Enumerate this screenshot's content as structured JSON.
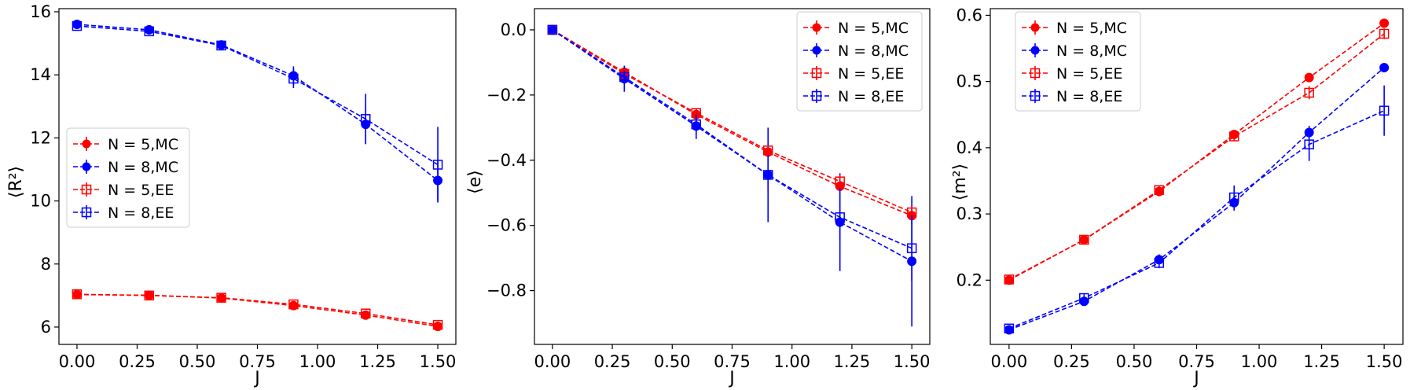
{
  "chart_data": [
    {
      "type": "line",
      "xlabel": "J",
      "ylabel": "⟨R²⟩",
      "xlim": [
        -0.075,
        1.575
      ],
      "ylim": [
        5.45,
        16.1
      ],
      "xticks": [
        0.0,
        0.25,
        0.5,
        0.75,
        1.0,
        1.25,
        1.5
      ],
      "xtick_labels": [
        "0.00",
        "0.25",
        "0.50",
        "0.75",
        "1.00",
        "1.25",
        "1.50"
      ],
      "yticks": [
        6,
        8,
        10,
        12,
        14,
        16
      ],
      "ytick_labels": [
        "6",
        "8",
        "10",
        "12",
        "14",
        "16"
      ],
      "legend_position": "center-left",
      "x": [
        0.0,
        0.3,
        0.6,
        0.9,
        1.2,
        1.5
      ],
      "series": [
        {
          "name": "N = 5,MC",
          "color": "#ff0000",
          "marker": "filled-circle",
          "values": [
            7.03,
            7.01,
            6.92,
            6.68,
            6.38,
            6.02
          ],
          "errors": [
            0.05,
            0.05,
            0.05,
            0.08,
            0.1,
            0.12
          ]
        },
        {
          "name": "N = 8,MC",
          "color": "#0000ff",
          "marker": "filled-circle",
          "values": [
            15.6,
            15.43,
            14.95,
            13.97,
            12.43,
            10.65
          ],
          "errors": [
            0.08,
            0.1,
            0.12,
            0.3,
            0.6,
            0.65
          ]
        },
        {
          "name": "N = 5,EE",
          "color": "#ff0000",
          "marker": "open-square",
          "values": [
            7.04,
            7.0,
            6.93,
            6.72,
            6.43,
            6.07
          ],
          "errors": [
            0.05,
            0.05,
            0.05,
            0.06,
            0.08,
            0.1
          ]
        },
        {
          "name": "N = 8,EE",
          "color": "#0000ff",
          "marker": "open-square",
          "values": [
            15.55,
            15.38,
            14.93,
            13.88,
            12.6,
            11.15
          ],
          "errors": [
            0.08,
            0.1,
            0.12,
            0.3,
            0.8,
            1.2
          ]
        }
      ]
    },
    {
      "type": "line",
      "xlabel": "J",
      "ylabel": "⟨e⟩",
      "xlim": [
        -0.075,
        1.575
      ],
      "ylim": [
        -0.965,
        0.065
      ],
      "xticks": [
        0.0,
        0.25,
        0.5,
        0.75,
        1.0,
        1.25,
        1.5
      ],
      "xtick_labels": [
        "0.00",
        "0.25",
        "0.50",
        "0.75",
        "1.00",
        "1.25",
        "1.50"
      ],
      "yticks": [
        0.0,
        -0.2,
        -0.4,
        -0.6,
        -0.8
      ],
      "ytick_labels": [
        "0.0",
        "−0.2",
        "−0.4",
        "−0.6",
        "−0.8"
      ],
      "legend_position": "top-right",
      "x": [
        0.0,
        0.3,
        0.6,
        0.9,
        1.2,
        1.5
      ],
      "series": [
        {
          "name": "N = 5,MC",
          "color": "#ff0000",
          "marker": "filled-circle",
          "values": [
            0.0,
            -0.13,
            -0.26,
            -0.375,
            -0.48,
            -0.57
          ],
          "errors": [
            0.015,
            0.02,
            0.02,
            0.02,
            0.025,
            0.025
          ]
        },
        {
          "name": "N = 8,MC",
          "color": "#0000ff",
          "marker": "filled-circle",
          "values": [
            0.0,
            -0.15,
            -0.295,
            -0.445,
            -0.59,
            -0.71
          ],
          "errors": [
            0.015,
            0.04,
            0.04,
            0.145,
            0.15,
            0.2
          ]
        },
        {
          "name": "N = 5,EE",
          "color": "#ff0000",
          "marker": "open-square",
          "values": [
            0.0,
            -0.135,
            -0.255,
            -0.37,
            -0.465,
            -0.56
          ],
          "errors": [
            0.01,
            0.015,
            0.015,
            0.015,
            0.02,
            0.02
          ]
        },
        {
          "name": "N = 8,EE",
          "color": "#0000ff",
          "marker": "open-square",
          "values": [
            0.0,
            -0.145,
            -0.29,
            -0.445,
            -0.575,
            -0.67
          ],
          "errors": [
            0.01,
            0.02,
            0.03,
            0.05,
            0.07,
            0.1
          ]
        }
      ]
    },
    {
      "type": "line",
      "xlabel": "J",
      "ylabel": "⟨m²⟩",
      "xlim": [
        -0.075,
        1.575
      ],
      "ylim": [
        0.103,
        0.61
      ],
      "xticks": [
        0.0,
        0.25,
        0.5,
        0.75,
        1.0,
        1.25,
        1.5
      ],
      "xtick_labels": [
        "0.00",
        "0.25",
        "0.50",
        "0.75",
        "1.00",
        "1.25",
        "1.50"
      ],
      "yticks": [
        0.2,
        0.3,
        0.4,
        0.5,
        0.6
      ],
      "ytick_labels": [
        "0.2",
        "0.3",
        "0.4",
        "0.5",
        "0.6"
      ],
      "legend_position": "top-left",
      "x": [
        0.0,
        0.3,
        0.6,
        0.9,
        1.2,
        1.5
      ],
      "series": [
        {
          "name": "N = 5,MC",
          "color": "#ff0000",
          "marker": "filled-circle",
          "values": [
            0.2,
            0.261,
            0.334,
            0.42,
            0.506,
            0.588
          ],
          "errors": [
            0.004,
            0.005,
            0.005,
            0.005,
            0.005,
            0.006
          ]
        },
        {
          "name": "N = 8,MC",
          "color": "#0000ff",
          "marker": "filled-circle",
          "values": [
            0.125,
            0.168,
            0.231,
            0.317,
            0.423,
            0.521
          ],
          "errors": [
            0.004,
            0.006,
            0.008,
            0.012,
            0.01,
            0.006
          ]
        },
        {
          "name": "N = 5,EE",
          "color": "#ff0000",
          "marker": "open-square",
          "values": [
            0.201,
            0.261,
            0.336,
            0.417,
            0.483,
            0.572
          ],
          "errors": [
            0.004,
            0.005,
            0.006,
            0.006,
            0.01,
            0.008
          ]
        },
        {
          "name": "N = 8,EE",
          "color": "#0000ff",
          "marker": "open-square",
          "values": [
            0.127,
            0.173,
            0.226,
            0.325,
            0.405,
            0.456
          ],
          "errors": [
            0.004,
            0.006,
            0.008,
            0.018,
            0.025,
            0.038
          ]
        }
      ]
    }
  ]
}
